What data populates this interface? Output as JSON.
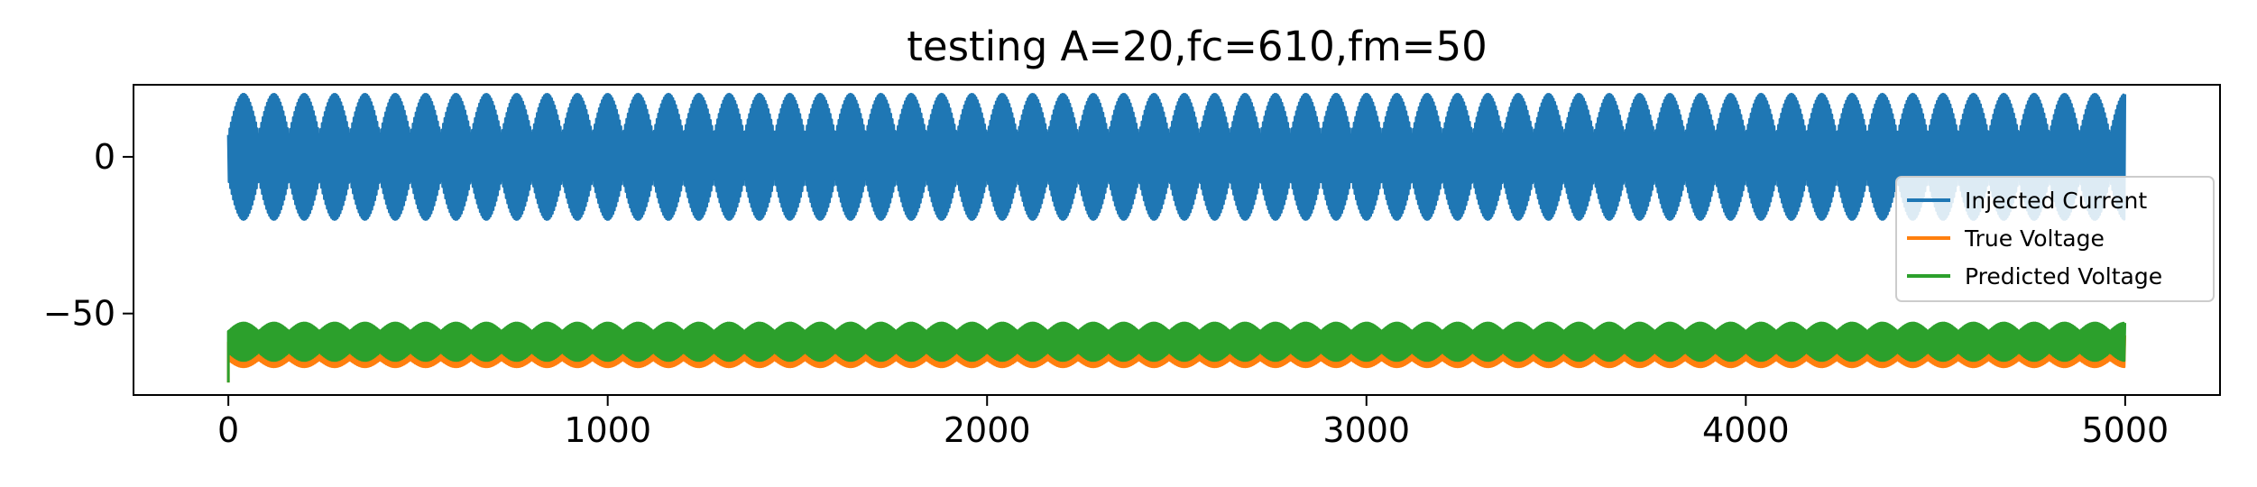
{
  "chart_data": {
    "type": "line",
    "title": "testing A=20,fc=610,fm=50",
    "xlabel": "",
    "ylabel": "",
    "xlim": [
      -250,
      5250
    ],
    "ylim": [
      -76,
      23
    ],
    "x_ticks": [
      0,
      1000,
      2000,
      3000,
      4000,
      5000
    ],
    "x_tick_labels": [
      "0",
      "1000",
      "2000",
      "3000",
      "4000",
      "5000"
    ],
    "y_ticks": [
      0,
      -50
    ],
    "y_tick_labels": [
      "0",
      "−50"
    ],
    "grid": false,
    "legend_position": "right",
    "signal_params": {
      "A": 20,
      "fc": 610,
      "fm": 50
    },
    "x_range": [
      0,
      5000
    ],
    "series": [
      {
        "name": "Injected Current",
        "color": "#1f77b4",
        "center": 0,
        "min": -20,
        "max": 20,
        "envelope_period_samples": 80
      },
      {
        "name": "True Voltage",
        "color": "#ff7f0e",
        "center": -62,
        "min": -67,
        "max": -57,
        "envelope_period_samples": 80,
        "initial_value": -72
      },
      {
        "name": "Predicted Voltage",
        "color": "#2ca02c",
        "center": -59,
        "min": -65,
        "max": -53,
        "envelope_period_samples": 80,
        "initial_value": -72
      }
    ]
  }
}
